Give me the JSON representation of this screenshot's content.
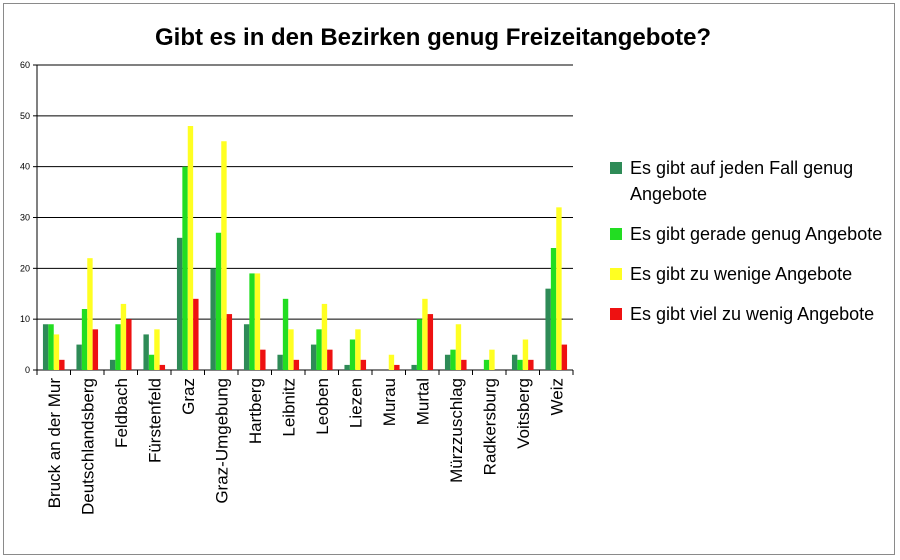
{
  "chart_data": {
    "type": "bar",
    "title": "Gibt es in den Bezirken genug Freizeitangebote?",
    "xlabel": "",
    "ylabel": "",
    "ylim": [
      0,
      60
    ],
    "yticks": [
      0,
      10,
      20,
      30,
      40,
      50,
      60
    ],
    "grid": true,
    "legend_position": "right",
    "categories": [
      "Bruck an der Mur",
      "Deutschlandsberg",
      "Feldbach",
      "Fürstenfeld",
      "Graz",
      "Graz-Umgebung",
      "Hartberg",
      "Leibnitz",
      "Leoben",
      "Liezen",
      "Murau",
      "Murtal",
      "Mürzzuschlag",
      "Radkersburg",
      "Voitsberg",
      "Weiz"
    ],
    "series": [
      {
        "name": "Es gibt auf jeden Fall genug Angebote",
        "color": "#2e8b57",
        "values": [
          9,
          5,
          2,
          7,
          26,
          20,
          9,
          3,
          5,
          1,
          0,
          1,
          3,
          0,
          3,
          16
        ]
      },
      {
        "name": "Es gibt gerade genug Angebote",
        "color": "#22dd22",
        "values": [
          9,
          12,
          9,
          3,
          40,
          27,
          19,
          14,
          8,
          6,
          0,
          10,
          4,
          2,
          2,
          24
        ]
      },
      {
        "name": "Es gibt zu wenige Angebote",
        "color": "#ffff22",
        "values": [
          7,
          22,
          13,
          8,
          48,
          45,
          19,
          8,
          13,
          8,
          3,
          14,
          9,
          4,
          6,
          32
        ]
      },
      {
        "name": "Es gibt viel zu wenig Angebote",
        "color": "#ee1111",
        "values": [
          2,
          8,
          10,
          1,
          14,
          11,
          4,
          2,
          4,
          2,
          1,
          11,
          2,
          0,
          2,
          5
        ]
      }
    ]
  }
}
